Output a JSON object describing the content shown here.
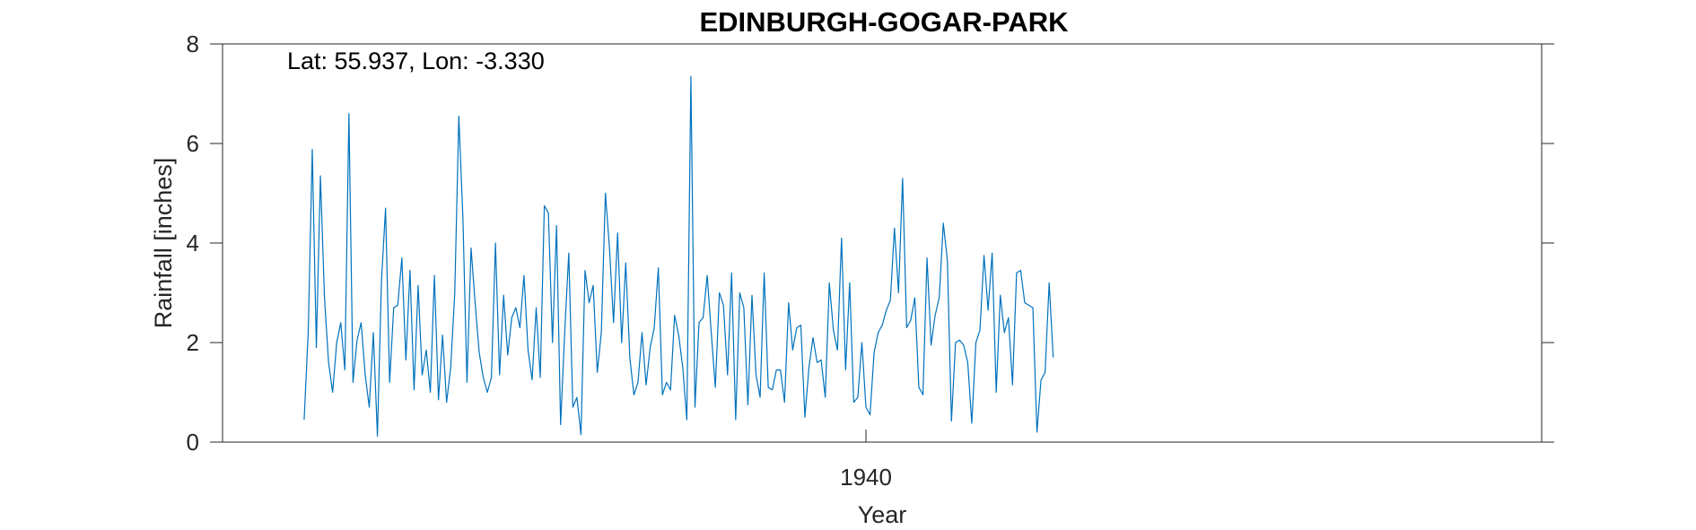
{
  "chart_data": {
    "type": "line",
    "title": "EDINBURGH-GOGAR-PARK",
    "xlabel": "Year",
    "ylabel": "Rainfall [inches]",
    "annotation": "Lat: 55.937, Lon: -3.330",
    "xlim": [
      1926.83,
      1953.83
    ],
    "ylim": [
      0,
      8
    ],
    "yticks": [
      0,
      2,
      4,
      6,
      8
    ],
    "xticks": [
      1940
    ],
    "xtick_labels": [
      "1940"
    ],
    "grid": false,
    "line_color": "#0072BD",
    "series": [
      {
        "x_start": 1928.5,
        "x_step": 0.08333,
        "values": [
          0.45,
          2.2,
          5.88,
          1.9,
          5.35,
          2.9,
          1.6,
          1.0,
          2.0,
          2.4,
          1.45,
          6.6,
          1.2,
          2.05,
          2.4,
          1.35,
          0.7,
          2.2,
          0.12,
          3.25,
          4.7,
          1.2,
          2.7,
          2.75,
          3.7,
          1.65,
          3.45,
          1.05,
          3.15,
          1.35,
          1.85,
          1.0,
          3.35,
          0.85,
          2.15,
          0.8,
          1.5,
          3.0,
          6.55,
          4.5,
          1.2,
          3.9,
          2.8,
          1.8,
          1.3,
          1.0,
          1.3,
          4.0,
          1.35,
          2.95,
          1.75,
          2.5,
          2.7,
          2.3,
          3.35,
          1.85,
          1.25,
          2.7,
          1.3,
          4.75,
          4.6,
          2.0,
          4.35,
          0.35,
          2.2,
          3.8,
          0.7,
          0.9,
          0.15,
          3.45,
          2.8,
          3.15,
          1.4,
          2.2,
          5.0,
          3.9,
          2.4,
          4.2,
          2.0,
          3.6,
          1.7,
          0.95,
          1.2,
          2.2,
          1.15,
          1.9,
          2.3,
          3.5,
          0.95,
          1.2,
          1.05,
          2.55,
          2.15,
          1.5,
          0.45,
          7.35,
          0.7,
          2.4,
          2.5,
          3.35,
          2.2,
          1.1,
          3.0,
          2.75,
          1.35,
          3.4,
          0.45,
          3.0,
          2.7,
          0.75,
          2.95,
          1.35,
          0.9,
          3.4,
          1.1,
          1.05,
          1.45,
          1.45,
          0.8,
          2.8,
          1.85,
          2.3,
          2.35,
          0.5,
          1.5,
          2.1,
          1.6,
          1.65,
          0.9,
          3.2,
          2.25,
          1.85,
          4.1,
          1.45,
          3.2,
          0.8,
          0.9,
          2.0,
          0.7,
          0.55,
          1.8,
          2.2,
          2.35,
          2.65,
          2.85,
          4.3,
          3.0,
          5.3,
          2.3,
          2.45,
          2.9,
          1.1,
          0.95,
          3.7,
          1.95,
          2.55,
          2.9,
          4.4,
          3.65,
          0.42,
          2.0,
          2.05,
          1.95,
          1.6,
          0.38,
          2.0,
          2.25,
          3.75,
          2.65,
          3.8,
          1.0,
          2.95,
          2.2,
          2.5,
          1.15,
          3.4,
          3.45,
          2.8,
          2.75,
          2.7,
          0.2,
          1.25,
          1.4,
          3.2,
          1.7
        ]
      }
    ]
  }
}
